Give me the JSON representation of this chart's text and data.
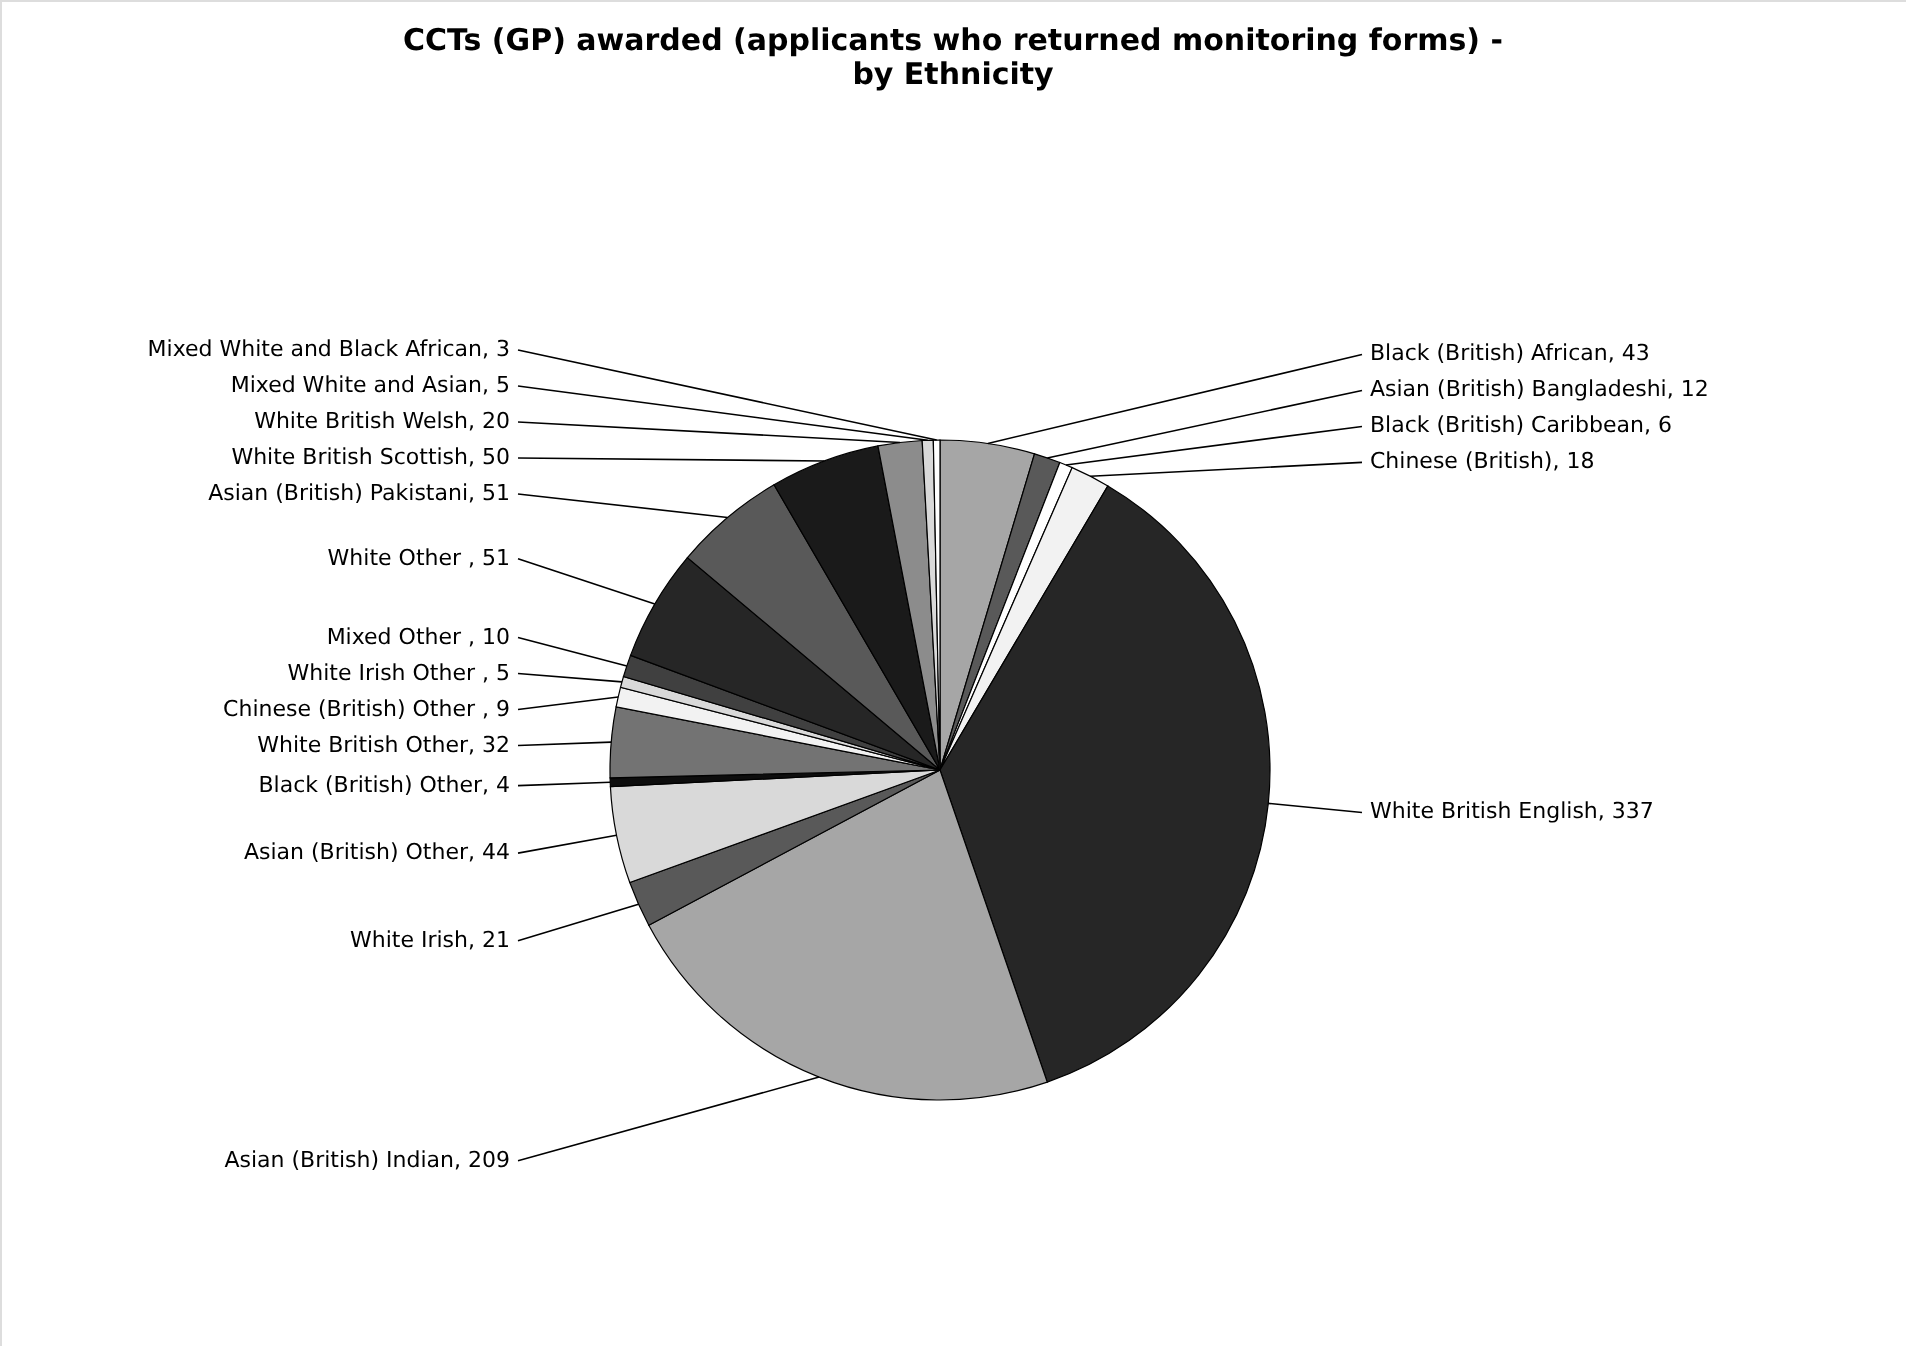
{
  "chart_data": {
    "type": "pie",
    "title": "CCTs (GP) awarded (applicants who returned monitoring forms) -\nby Ethnicity",
    "categories": [
      "Black (British) African",
      "Asian (British) Bangladeshi",
      "Black (British) Caribbean",
      "Chinese (British)",
      "White British English",
      "Asian (British) Indian",
      "White Irish",
      "Asian (British) Other",
      "Black (British) Other",
      "White British Other",
      "Chinese (British) Other ",
      "White Irish Other ",
      "Mixed Other ",
      "White Other ",
      "Asian (British) Pakistani",
      "White British Scottish",
      "White British Welsh",
      "Mixed White and Asian",
      "Mixed White and Black African"
    ],
    "values": [
      43,
      12,
      6,
      18,
      337,
      209,
      21,
      44,
      4,
      32,
      9,
      5,
      10,
      51,
      51,
      50,
      20,
      5,
      3
    ],
    "colors": [
      "#a6a6a6",
      "#595959",
      "#ffffff",
      "#f2f2f2",
      "#262626",
      "#a6a6a6",
      "#595959",
      "#d9d9d9",
      "#0d0d0d",
      "#737373",
      "#f2f2f2",
      "#d9d9d9",
      "#404040",
      "#262626",
      "#595959",
      "#1a1a1a",
      "#8c8c8c",
      "#d9d9d9",
      "#ffffff"
    ],
    "value_labels": [
      ", 43",
      ", 12",
      ", 6",
      ", 18",
      ", 337",
      ", 209",
      ", 21",
      ", 44",
      ", 4",
      ", 32",
      ", 9",
      ", 5",
      ", 10",
      ", 51",
      ", 51",
      ", 50",
      ", 20",
      ", 5",
      ", 3"
    ],
    "legend": false
  }
}
